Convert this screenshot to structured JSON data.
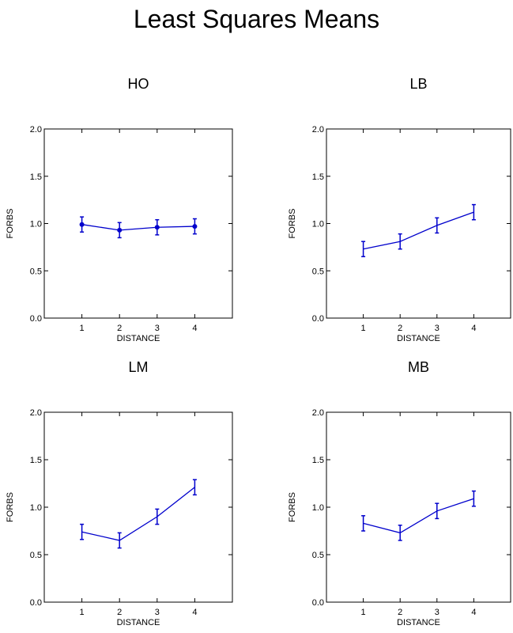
{
  "title": "Least Squares Means",
  "chart_data": [
    {
      "type": "line",
      "title": "HO",
      "xlabel": "DISTANCE",
      "ylabel": "FORBS",
      "x": [
        1,
        2,
        3,
        4
      ],
      "xlim": [
        0,
        5
      ],
      "ylim": [
        0,
        2
      ],
      "xticks": [
        "1",
        "2",
        "3",
        "4"
      ],
      "yticks": [
        "0.0",
        "0.5",
        "1.0",
        "1.5",
        "2.0"
      ],
      "markers": true,
      "series": [
        {
          "values": [
            0.99,
            0.93,
            0.96,
            0.97
          ],
          "lower": [
            0.91,
            0.85,
            0.88,
            0.89
          ],
          "upper": [
            1.07,
            1.01,
            1.04,
            1.05
          ]
        }
      ]
    },
    {
      "type": "line",
      "title": "LB",
      "xlabel": "DISTANCE",
      "ylabel": "FORBS",
      "x": [
        1,
        2,
        3,
        4
      ],
      "xlim": [
        0,
        5
      ],
      "ylim": [
        0,
        2
      ],
      "xticks": [
        "1",
        "2",
        "3",
        "4"
      ],
      "yticks": [
        "0.0",
        "0.5",
        "1.0",
        "1.5",
        "2.0"
      ],
      "markers": false,
      "series": [
        {
          "values": [
            0.73,
            0.81,
            0.98,
            1.12
          ],
          "lower": [
            0.65,
            0.73,
            0.9,
            1.04
          ],
          "upper": [
            0.81,
            0.89,
            1.06,
            1.2
          ]
        }
      ]
    },
    {
      "type": "line",
      "title": "LM",
      "xlabel": "DISTANCE",
      "ylabel": "FORBS",
      "x": [
        1,
        2,
        3,
        4
      ],
      "xlim": [
        0,
        5
      ],
      "ylim": [
        0,
        2
      ],
      "xticks": [
        "1",
        "2",
        "3",
        "4"
      ],
      "yticks": [
        "0.0",
        "0.5",
        "1.0",
        "1.5",
        "2.0"
      ],
      "markers": false,
      "series": [
        {
          "values": [
            0.74,
            0.65,
            0.9,
            1.21
          ],
          "lower": [
            0.66,
            0.57,
            0.82,
            1.13
          ],
          "upper": [
            0.82,
            0.73,
            0.98,
            1.29
          ]
        }
      ]
    },
    {
      "type": "line",
      "title": "MB",
      "xlabel": "DISTANCE",
      "ylabel": "FORBS",
      "x": [
        1,
        2,
        3,
        4
      ],
      "xlim": [
        0,
        5
      ],
      "ylim": [
        0,
        2
      ],
      "xticks": [
        "1",
        "2",
        "3",
        "4"
      ],
      "yticks": [
        "0.0",
        "0.5",
        "1.0",
        "1.5",
        "2.0"
      ],
      "markers": false,
      "series": [
        {
          "values": [
            0.83,
            0.73,
            0.96,
            1.09
          ],
          "lower": [
            0.75,
            0.65,
            0.88,
            1.01
          ],
          "upper": [
            0.91,
            0.81,
            1.04,
            1.17
          ]
        }
      ]
    }
  ],
  "colors": {
    "series": "#0000cc",
    "axis": "#000000"
  }
}
